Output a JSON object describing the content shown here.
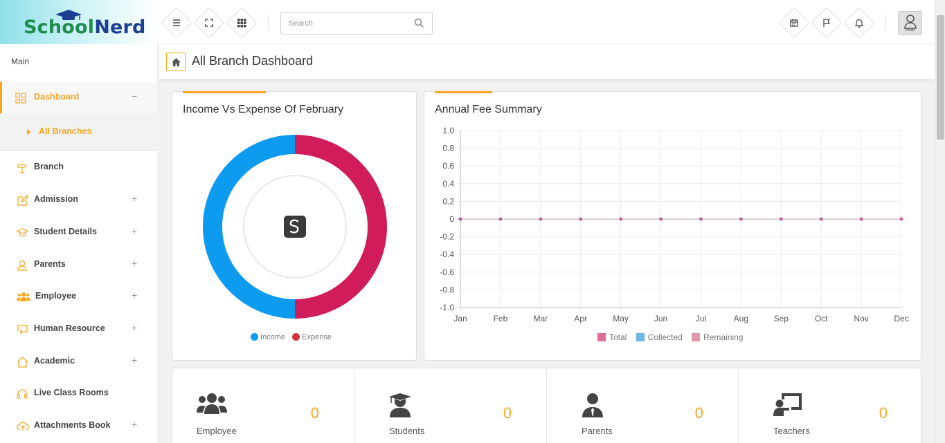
{
  "logo": {
    "part1": "School",
    "part2": "Nerd"
  },
  "search": {
    "placeholder": "Search"
  },
  "avatar": {
    "caption": "Photo"
  },
  "sidebar": {
    "section_label": "Main",
    "items": [
      {
        "label": "Dashboard",
        "toggle": "−"
      },
      {
        "label": "All Branches"
      },
      {
        "label": "Branch"
      },
      {
        "label": "Admission",
        "toggle": "+"
      },
      {
        "label": "Student Details",
        "toggle": "+"
      },
      {
        "label": "Parents",
        "toggle": "+"
      },
      {
        "label": "Employee",
        "toggle": "+"
      },
      {
        "label": "Human Resource",
        "toggle": "+"
      },
      {
        "label": "Academic",
        "toggle": "+"
      },
      {
        "label": "Live Class Rooms"
      },
      {
        "label": "Attachments Book",
        "toggle": "+"
      }
    ]
  },
  "page": {
    "title": "All Branch Dashboard"
  },
  "income_card": {
    "title": "Income Vs Expense Of February",
    "legend": [
      {
        "label": "Income",
        "color": "#0d9bf0"
      },
      {
        "label": "Expense",
        "color": "#d01c5b"
      }
    ]
  },
  "fee_card": {
    "title": "Annual Fee Summary",
    "legend": [
      {
        "label": "Total",
        "color": "#e06c9a"
      },
      {
        "label": "Collected",
        "color": "#6cb6e6"
      },
      {
        "label": "Remaining",
        "color": "#e09aa5"
      }
    ]
  },
  "chart_data": [
    {
      "type": "pie",
      "title": "Income Vs Expense Of February",
      "labels": [
        "Income",
        "Expense"
      ],
      "values": [
        1,
        1
      ],
      "colors": [
        "#0d9bf0",
        "#d01c5b"
      ],
      "legend": "bottom"
    },
    {
      "type": "line",
      "title": "Annual Fee Summary",
      "categories": [
        "Jan",
        "Feb",
        "Mar",
        "Apr",
        "May",
        "Jun",
        "Jul",
        "Aug",
        "Sep",
        "Oct",
        "Nov",
        "Dec"
      ],
      "series": [
        {
          "name": "Total",
          "values": [
            0,
            0,
            0,
            0,
            0,
            0,
            0,
            0,
            0,
            0,
            0,
            0
          ],
          "color": "#c85c9b"
        },
        {
          "name": "Collected",
          "values": [
            0,
            0,
            0,
            0,
            0,
            0,
            0,
            0,
            0,
            0,
            0,
            0
          ],
          "color": "#6cb6e6"
        },
        {
          "name": "Remaining",
          "values": [
            0,
            0,
            0,
            0,
            0,
            0,
            0,
            0,
            0,
            0,
            0,
            0
          ],
          "color": "#e09aa5"
        }
      ],
      "ylim": [
        -1.0,
        1.0
      ],
      "yticks": [
        "1.0",
        "0.8",
        "0.6",
        "0.4",
        "0.2",
        "0",
        "-0.2",
        "-0.4",
        "-0.6",
        "-0.8",
        "-1.0"
      ],
      "grid": true,
      "legend": "bottom"
    }
  ],
  "stats": [
    {
      "label": "Employee",
      "value": "0",
      "icon": "users-icon"
    },
    {
      "label": "Students",
      "value": "0",
      "icon": "graduate-icon"
    },
    {
      "label": "Parents",
      "value": "0",
      "icon": "user-tie-icon"
    },
    {
      "label": "Teachers",
      "value": "0",
      "icon": "chalkboard-teacher-icon"
    }
  ]
}
